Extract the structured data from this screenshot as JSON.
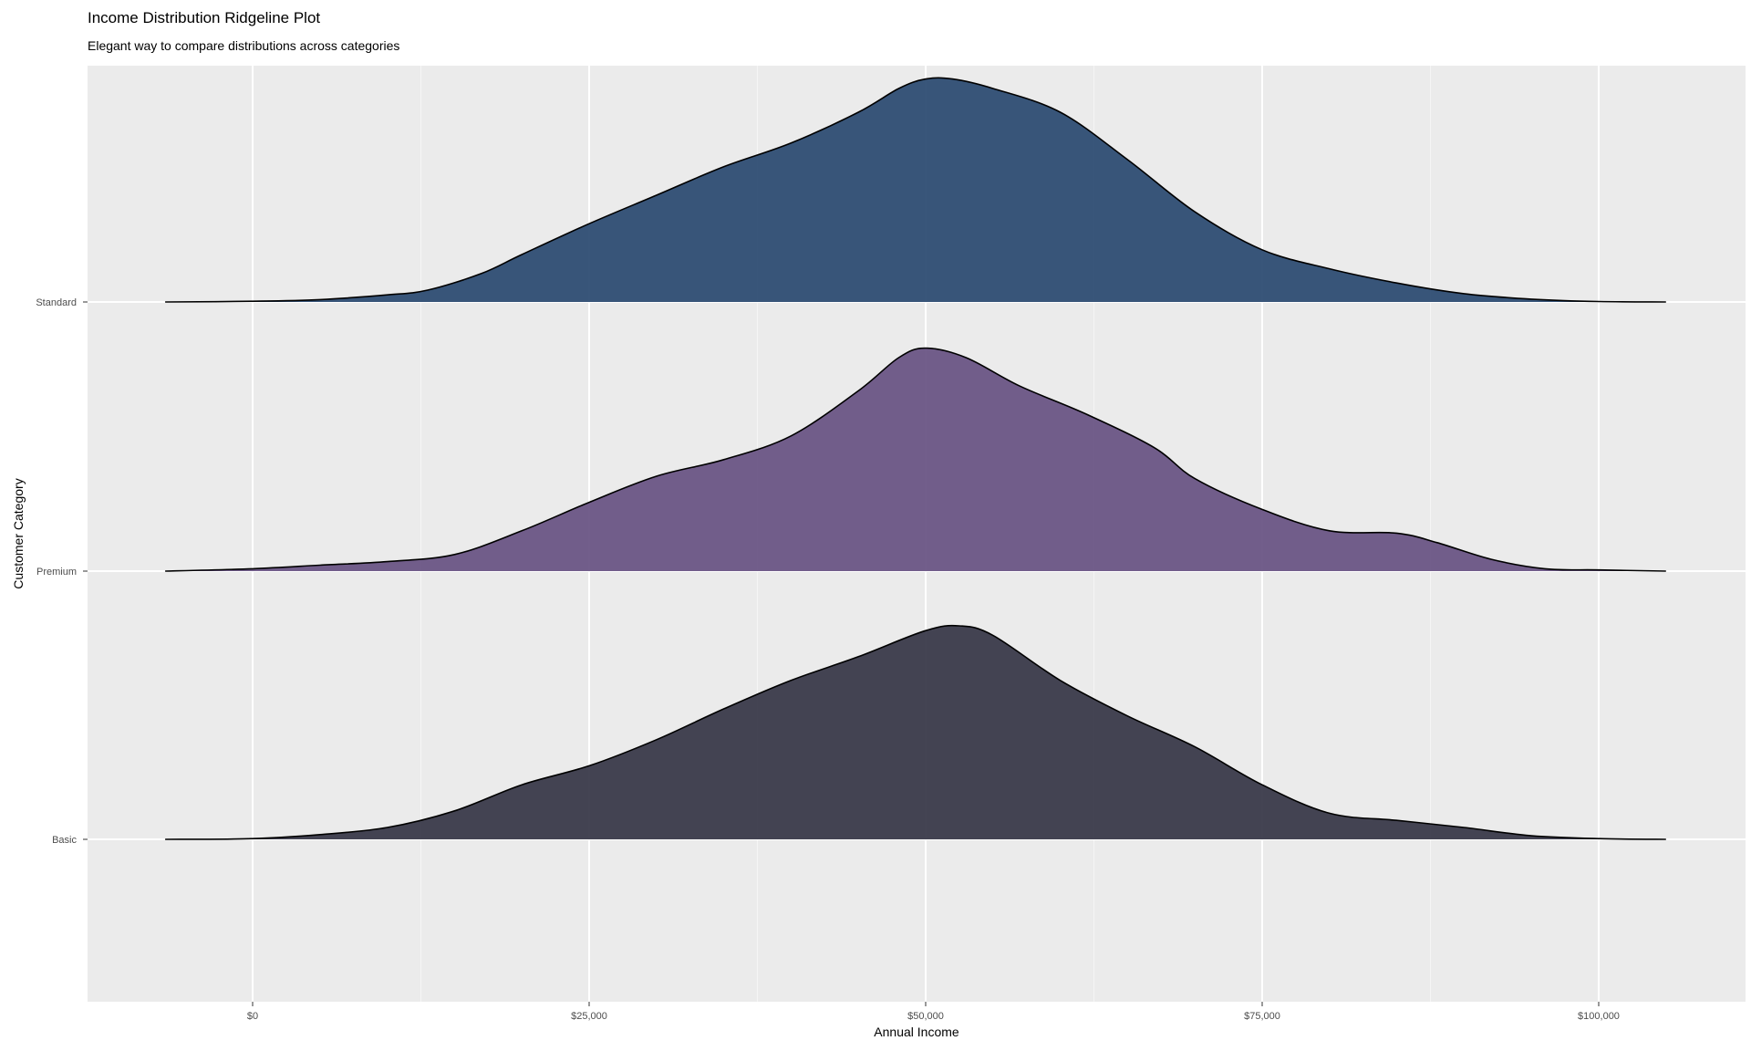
{
  "chart_data": {
    "type": "ridgeline",
    "title": "Income Distribution Ridgeline Plot",
    "subtitle": "Elegant way to compare distributions across categories",
    "xlabel": "Annual Income",
    "ylabel": "Customer Category",
    "xlim": [
      -12500,
      110000
    ],
    "x_ticks": [
      {
        "value": 0,
        "label": "$0"
      },
      {
        "value": 25000,
        "label": "$25,000"
      },
      {
        "value": 50000,
        "label": "$50,000"
      },
      {
        "value": 75000,
        "label": "$75,000"
      },
      {
        "value": 100000,
        "label": "$100,000"
      }
    ],
    "categories": [
      "Basic",
      "Premium",
      "Standard"
    ],
    "grid": true,
    "background": "#ebebeb",
    "series": [
      {
        "name": "Basic",
        "color": "#3a3a4a",
        "points": [
          [
            -6500,
            0
          ],
          [
            0,
            0.003
          ],
          [
            5000,
            0.02
          ],
          [
            10000,
            0.05
          ],
          [
            15000,
            0.12
          ],
          [
            20000,
            0.23
          ],
          [
            25000,
            0.31
          ],
          [
            30000,
            0.42
          ],
          [
            35000,
            0.55
          ],
          [
            40000,
            0.67
          ],
          [
            45000,
            0.77
          ],
          [
            50000,
            0.88
          ],
          [
            52500,
            0.9
          ],
          [
            55000,
            0.86
          ],
          [
            60000,
            0.67
          ],
          [
            65000,
            0.52
          ],
          [
            70000,
            0.39
          ],
          [
            75000,
            0.23
          ],
          [
            80000,
            0.11
          ],
          [
            85000,
            0.08
          ],
          [
            90000,
            0.05
          ],
          [
            95000,
            0.015
          ],
          [
            100000,
            0.003
          ],
          [
            105000,
            0
          ]
        ]
      },
      {
        "name": "Premium",
        "color": "#6a5585",
        "points": [
          [
            -6500,
            0
          ],
          [
            0,
            0.01
          ],
          [
            5000,
            0.025
          ],
          [
            10000,
            0.04
          ],
          [
            15000,
            0.07
          ],
          [
            20000,
            0.17
          ],
          [
            25000,
            0.29
          ],
          [
            30000,
            0.4
          ],
          [
            35000,
            0.47
          ],
          [
            40000,
            0.57
          ],
          [
            45000,
            0.76
          ],
          [
            48000,
            0.9
          ],
          [
            50000,
            0.94
          ],
          [
            53000,
            0.9
          ],
          [
            57000,
            0.78
          ],
          [
            62000,
            0.66
          ],
          [
            67000,
            0.52
          ],
          [
            70000,
            0.39
          ],
          [
            75000,
            0.26
          ],
          [
            80000,
            0.17
          ],
          [
            85000,
            0.16
          ],
          [
            88000,
            0.12
          ],
          [
            92000,
            0.05
          ],
          [
            96000,
            0.01
          ],
          [
            100000,
            0.005
          ],
          [
            105000,
            0
          ]
        ]
      },
      {
        "name": "Standard",
        "color": "#2e4d73",
        "points": [
          [
            -6500,
            0
          ],
          [
            0,
            0.003
          ],
          [
            5000,
            0.01
          ],
          [
            10000,
            0.03
          ],
          [
            13000,
            0.05
          ],
          [
            17000,
            0.12
          ],
          [
            20000,
            0.2
          ],
          [
            25000,
            0.33
          ],
          [
            30000,
            0.45
          ],
          [
            35000,
            0.57
          ],
          [
            40000,
            0.67
          ],
          [
            45000,
            0.8
          ],
          [
            48000,
            0.9
          ],
          [
            50000,
            0.94
          ],
          [
            52000,
            0.94
          ],
          [
            55000,
            0.9
          ],
          [
            60000,
            0.8
          ],
          [
            65000,
            0.6
          ],
          [
            70000,
            0.38
          ],
          [
            75000,
            0.22
          ],
          [
            80000,
            0.14
          ],
          [
            85000,
            0.08
          ],
          [
            90000,
            0.035
          ],
          [
            95000,
            0.012
          ],
          [
            100000,
            0.002
          ],
          [
            105000,
            0
          ]
        ]
      }
    ]
  }
}
